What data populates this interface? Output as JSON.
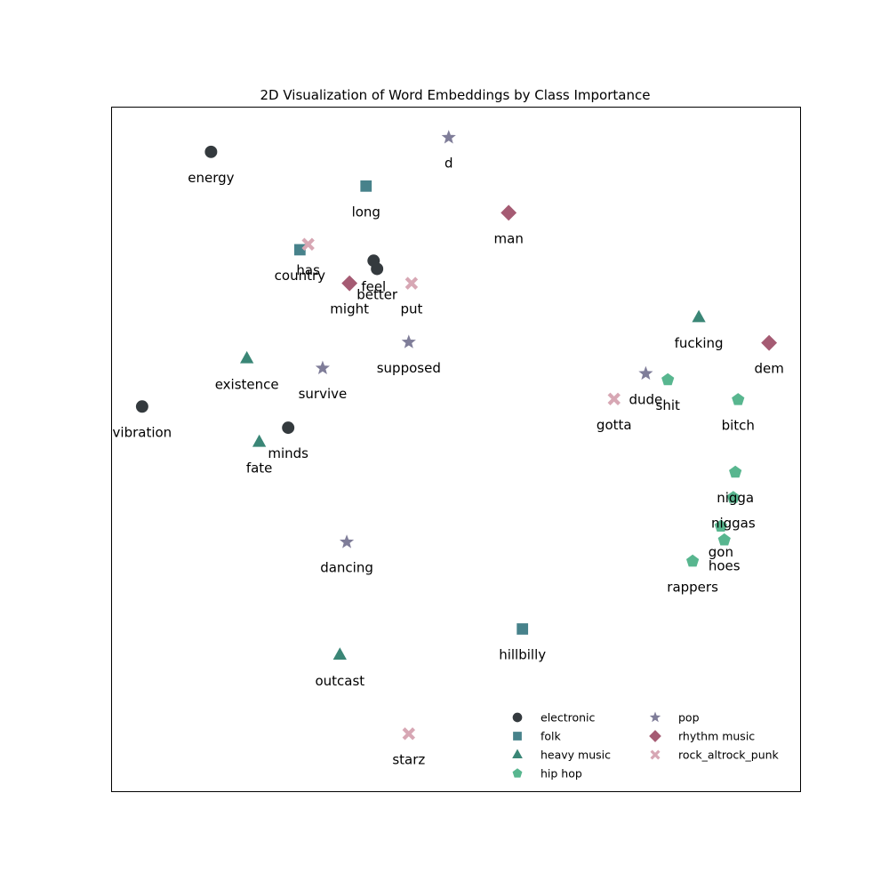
{
  "chart_data": {
    "type": "scatter",
    "title": "2D Visualization of Word Embeddings by Class Importance",
    "xlabel": "",
    "ylabel": "",
    "xlim": [
      0,
      100
    ],
    "ylim": [
      0,
      100
    ],
    "axes_ticks_shown": false,
    "grid": false,
    "legend_position": "lower-right",
    "legend_columns": 2,
    "series": [
      {
        "name": "electronic",
        "marker": "circle",
        "color": "#343a3e",
        "points": [
          {
            "word": "energy",
            "x": 14.5,
            "y": 93.4
          },
          {
            "word": "feel",
            "x": 38.1,
            "y": 77.5
          },
          {
            "word": "better",
            "x": 38.6,
            "y": 76.3
          },
          {
            "word": "vibration",
            "x": 4.5,
            "y": 56.2
          },
          {
            "word": "minds",
            "x": 25.7,
            "y": 53.1
          }
        ]
      },
      {
        "name": "folk",
        "marker": "square",
        "color": "#47828b",
        "points": [
          {
            "word": "long",
            "x": 37.0,
            "y": 88.4
          },
          {
            "word": "country",
            "x": 27.4,
            "y": 79.1
          },
          {
            "word": "hillbilly",
            "x": 59.7,
            "y": 23.7
          }
        ]
      },
      {
        "name": "heavy music",
        "marker": "triangle",
        "color": "#3a8676",
        "points": [
          {
            "word": "fucking",
            "x": 85.3,
            "y": 69.2
          },
          {
            "word": "existence",
            "x": 19.7,
            "y": 63.2
          },
          {
            "word": "fate",
            "x": 21.5,
            "y": 51.0
          },
          {
            "word": "outcast",
            "x": 33.2,
            "y": 19.9
          }
        ]
      },
      {
        "name": "hip hop",
        "marker": "pentagon",
        "color": "#58b68f",
        "points": [
          {
            "word": "shit",
            "x": 80.8,
            "y": 60.1
          },
          {
            "word": "bitch",
            "x": 91.0,
            "y": 57.2
          },
          {
            "word": "nigga",
            "x": 90.6,
            "y": 46.6
          },
          {
            "word": "niggas",
            "x": 90.3,
            "y": 42.9
          },
          {
            "word": "gon",
            "x": 88.5,
            "y": 38.7
          },
          {
            "word": "hoes",
            "x": 89.0,
            "y": 36.7
          },
          {
            "word": "rappers",
            "x": 84.4,
            "y": 33.6
          }
        ]
      },
      {
        "name": "pop",
        "marker": "star",
        "color": "#7f7d99",
        "points": [
          {
            "word": "d",
            "x": 49.0,
            "y": 95.5
          },
          {
            "word": "supposed",
            "x": 43.2,
            "y": 65.6
          },
          {
            "word": "survive",
            "x": 30.7,
            "y": 61.8
          },
          {
            "word": "dude",
            "x": 77.6,
            "y": 61.0
          },
          {
            "word": "dancing",
            "x": 34.2,
            "y": 36.4
          }
        ]
      },
      {
        "name": "rhythm music",
        "marker": "diamond",
        "color": "#a55b73",
        "points": [
          {
            "word": "man",
            "x": 57.7,
            "y": 84.5
          },
          {
            "word": "might",
            "x": 34.6,
            "y": 74.2
          },
          {
            "word": "dem",
            "x": 95.5,
            "y": 65.5
          }
        ]
      },
      {
        "name": "rock_altrock_punk",
        "marker": "x",
        "color": "#d7a7b4",
        "points": [
          {
            "word": "has",
            "x": 28.6,
            "y": 79.9
          },
          {
            "word": "put",
            "x": 43.6,
            "y": 74.2
          },
          {
            "word": "gotta",
            "x": 73.0,
            "y": 57.3
          },
          {
            "word": "starz",
            "x": 43.2,
            "y": 8.4
          }
        ]
      }
    ]
  }
}
